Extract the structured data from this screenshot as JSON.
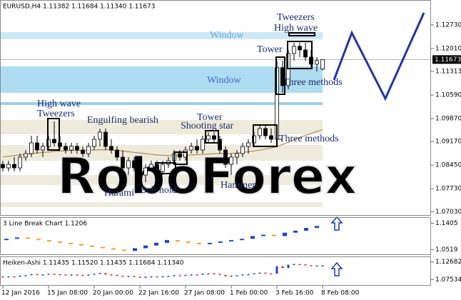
{
  "chart_data": [
    {
      "type": "candlestick",
      "title": "EURUSD,H4 1.11382 1.11684 1.11340 1.11673",
      "categories": [
        "12 Jan 2016",
        null,
        null,
        null,
        null,
        null,
        null,
        null,
        "15 Jan 08:00",
        null,
        null,
        null,
        null,
        null,
        null,
        null,
        "20 Jan 00:00",
        null,
        null,
        null,
        null,
        null,
        null,
        null,
        "22 Jan 16:00",
        null,
        null,
        null,
        null,
        null,
        null,
        null,
        "27 Jan 08:00",
        null,
        null,
        null,
        null,
        null,
        null,
        null,
        "1 Feb 00:00",
        null,
        null,
        null,
        null,
        null,
        null,
        null,
        "3 Feb 16:00",
        null,
        null,
        null,
        null,
        null,
        null,
        null,
        "8 Feb 08:00"
      ],
      "open": [
        1.08475,
        1.08366,
        1.08475,
        1.08366,
        1.08694,
        1.08803,
        1.0913,
        1.08912,
        1.09021,
        1.09239,
        1.0913,
        1.09021,
        1.08912,
        1.09021,
        1.08912,
        1.08803,
        1.09021,
        1.09239,
        1.09457,
        1.09021,
        1.08912,
        1.08694,
        1.08366,
        1.08585,
        1.08366,
        1.08148,
        1.08366,
        1.08475,
        1.08257,
        1.08475,
        1.08585,
        1.08803,
        1.08694,
        1.08912,
        1.09021,
        1.08912,
        1.09239,
        1.09348,
        1.09239,
        1.08912,
        1.08475,
        1.08694,
        1.08803,
        1.09021,
        1.0913,
        1.09348,
        1.09566,
        1.09348,
        1.09239,
        1.11421,
        1.10876,
        1.11858,
        1.12076,
        1.11967,
        1.11748,
        1.1153,
        1.11382
      ],
      "high": [
        1.08585,
        1.08585,
        1.08694,
        1.08803,
        1.08912,
        1.09348,
        1.09348,
        1.0913,
        1.09348,
        1.09785,
        1.09348,
        1.0913,
        1.0913,
        1.0913,
        1.09021,
        1.0913,
        1.09348,
        1.09566,
        1.09566,
        1.09239,
        1.09021,
        1.08912,
        1.08694,
        1.08694,
        1.08475,
        1.08475,
        1.08585,
        1.08585,
        1.08585,
        1.08694,
        1.08912,
        1.08912,
        1.09021,
        1.0913,
        1.09239,
        1.09348,
        1.09457,
        1.09457,
        1.09348,
        1.09021,
        1.08803,
        1.08912,
        1.0913,
        1.09239,
        1.09457,
        1.09676,
        1.09676,
        1.09566,
        1.11639,
        1.11639,
        1.11967,
        1.12185,
        1.12185,
        1.12185,
        1.11967,
        1.11748,
        1.11684
      ],
      "low": [
        1.08257,
        1.08257,
        1.08257,
        1.08257,
        1.08585,
        1.08694,
        1.08803,
        1.08694,
        1.08912,
        1.09021,
        1.08912,
        1.08803,
        1.08803,
        1.08803,
        1.08694,
        1.08694,
        1.08912,
        1.09021,
        1.08912,
        1.08803,
        1.08585,
        1.08257,
        1.08148,
        1.08257,
        1.08039,
        1.0793,
        1.08257,
        1.08148,
        1.08148,
        1.08366,
        1.08475,
        1.08585,
        1.08585,
        1.08803,
        1.08803,
        1.08803,
        1.0913,
        1.0913,
        1.08803,
        1.08366,
        1.08148,
        1.08475,
        1.08694,
        1.08803,
        1.09021,
        1.09239,
        1.09239,
        1.0913,
        1.0913,
        1.10657,
        1.10767,
        1.11639,
        1.11748,
        1.11639,
        1.11421,
        1.11312,
        1.1134
      ],
      "close": [
        1.08366,
        1.08475,
        1.08366,
        1.08694,
        1.08803,
        1.0913,
        1.08912,
        1.09021,
        1.09239,
        1.0913,
        1.09021,
        1.08912,
        1.09021,
        1.08912,
        1.08803,
        1.09021,
        1.09239,
        1.09457,
        1.09021,
        1.08912,
        1.08694,
        1.08366,
        1.08585,
        1.08366,
        1.08148,
        1.08366,
        1.08475,
        1.08257,
        1.08475,
        1.08585,
        1.08803,
        1.08694,
        1.08912,
        1.09021,
        1.08912,
        1.09239,
        1.09348,
        1.09239,
        1.08912,
        1.08475,
        1.08694,
        1.08803,
        1.09021,
        1.0913,
        1.09348,
        1.09566,
        1.09348,
        1.09239,
        1.11421,
        1.10876,
        1.11858,
        1.12076,
        1.11967,
        1.11748,
        1.1153,
        1.11639,
        1.11673
      ],
      "up_color": "#ffffff",
      "down_color": "#000000",
      "moving_average": {
        "color": "#b08a4a",
        "values": [
          1.087,
          1.0872,
          1.0874,
          1.0876,
          1.0878,
          1.088,
          1.0882,
          1.0884,
          1.0885,
          1.0887,
          1.0888,
          1.0889,
          1.089,
          1.089,
          1.089,
          1.0891,
          1.0891,
          1.0892,
          1.0892,
          1.0891,
          1.089,
          1.0888,
          1.0886,
          1.0884,
          1.0882,
          1.088,
          1.0878,
          1.0876,
          1.0875,
          1.0874,
          1.0874,
          1.0874,
          1.0875,
          1.0876,
          1.0877,
          1.0878,
          1.0879,
          1.088,
          1.088,
          1.088,
          1.0881,
          1.0882,
          1.0884,
          1.0886,
          1.0888,
          1.0891,
          1.0894,
          1.0897,
          1.0902,
          1.0908,
          1.0915,
          1.0922,
          1.0929,
          1.0936,
          1.0942,
          1.0948,
          1.0953
        ]
      },
      "ylim": [
        1.0695,
        1.1349
      ],
      "yticks": [
        {
          "value": 1.1273,
          "label": "1.12730"
        },
        {
          "value": 1.1201,
          "label": "1.12010"
        },
        1.11313,
        {
          "value": 1.1059,
          "label": "1.10590"
        },
        {
          "value": 1.0987,
          "label": "1.09870"
        },
        {
          "value": 1.0917,
          "label": "1.09170"
        },
        {
          "value": 1.0845,
          "label": "1.08450"
        },
        {
          "value": 1.0773,
          "label": "1.07730"
        },
        {
          "value": 1.0703,
          "label": "1.07030"
        }
      ],
      "last_price": 1.11673,
      "zones": [
        {
          "label": "Window",
          "low": 1.12294,
          "high": 1.12512,
          "color": "#cfe8f6"
        },
        {
          "label": "Window",
          "low": 1.10657,
          "high": 1.11465,
          "color": "#aedcf1"
        },
        {
          "low": 1.10287,
          "high": 1.10374,
          "color": "#9ccfec"
        },
        {
          "low": 1.09392,
          "high": 1.09828,
          "color": "#efebdc"
        },
        {
          "low": 1.08585,
          "high": 1.09064,
          "color": "#efebdc"
        },
        {
          "low": 1.07843,
          "high": 1.08148,
          "color": "#efebdc"
        },
        {
          "low": 1.07166,
          "high": 1.07319,
          "color": "#efebdc"
        }
      ],
      "annotations": [
        "Tweezers",
        "High wave",
        "Tower",
        "Three methods",
        "High wave",
        "Tweezers",
        "Engulfing bearish",
        "Tower",
        "Shooting star",
        "Three methods",
        "Harami",
        "Belt hold",
        "Hammer"
      ],
      "watermark": "RoboForex"
    },
    {
      "type": "line_break",
      "title": "3 Line Break Chart 1.1206",
      "open": [
        1.0837,
        1.0882,
        1.0928,
        1.0882,
        1.0837,
        1.0792,
        1.0746,
        1.0701,
        1.0655,
        1.061,
        1.0564,
        1.0519,
        1.0474,
        1.0564,
        1.0655,
        1.0746,
        1.0837,
        1.0792,
        1.0746,
        1.0701,
        1.0746,
        1.0792,
        1.0837,
        1.0882,
        1.0973,
        1.1019,
        1.0973,
        1.1087,
        1.1155,
        1.1246
      ],
      "close": [
        1.0882,
        1.0928,
        1.0882,
        1.0837,
        1.0792,
        1.0746,
        1.0701,
        1.0655,
        1.061,
        1.0564,
        1.0519,
        1.0474,
        1.0564,
        1.0655,
        1.0746,
        1.0837,
        1.0792,
        1.0746,
        1.0701,
        1.0746,
        1.0792,
        1.0837,
        1.0882,
        1.0973,
        1.1019,
        1.0973,
        1.1087,
        1.1155,
        1.1246,
        1.1314
      ],
      "up_color": "#1f3fd0",
      "down_color": "#f0a020",
      "ylim": [
        1.036,
        1.1587
      ],
      "yticks": [
        1.1405,
        1.0519
      ]
    },
    {
      "type": "heiken_ashi",
      "title": "Heiken-Ashi 1.11435 1.11520 1.11435 1.11684 1.11340",
      "open": [
        1.08475,
        1.08366,
        1.08475,
        1.08366,
        1.08694,
        1.08803,
        1.0913,
        1.08912,
        1.09021,
        1.09239,
        1.0913,
        1.09021,
        1.08912,
        1.09021,
        1.08912,
        1.08803,
        1.09021,
        1.09239,
        1.09457,
        1.09021,
        1.08912,
        1.08694,
        1.08366,
        1.08585,
        1.08366,
        1.08148,
        1.08366,
        1.08475,
        1.08257,
        1.08475,
        1.08585,
        1.08803,
        1.08694,
        1.08912,
        1.09021,
        1.08912,
        1.09239,
        1.09348,
        1.09239,
        1.08912,
        1.08475,
        1.08694,
        1.08803,
        1.09021,
        1.0913,
        1.09348,
        1.09566,
        1.09348,
        1.09239,
        1.11421,
        1.10876,
        1.11858,
        1.12076,
        1.11967,
        1.11748,
        1.1153,
        1.11639
      ],
      "close": [
        1.08366,
        1.08475,
        1.08366,
        1.08694,
        1.08803,
        1.0913,
        1.08912,
        1.09021,
        1.09239,
        1.0913,
        1.09021,
        1.08912,
        1.09021,
        1.08912,
        1.08803,
        1.09021,
        1.09239,
        1.09457,
        1.09021,
        1.08912,
        1.08694,
        1.08366,
        1.08585,
        1.08366,
        1.08148,
        1.08366,
        1.08475,
        1.08257,
        1.08475,
        1.08585,
        1.08803,
        1.08694,
        1.08912,
        1.09021,
        1.08912,
        1.09239,
        1.09348,
        1.09239,
        1.08912,
        1.08475,
        1.08694,
        1.08803,
        1.09021,
        1.0913,
        1.09348,
        1.09566,
        1.09348,
        1.09239,
        1.11421,
        1.10876,
        1.11858,
        1.12076,
        1.11967,
        1.11748,
        1.1153,
        1.11639,
        1.11673
      ],
      "up_color": "#1f3fd0",
      "down_color": "#e02020",
      "ylim": [
        1.0595,
        1.14068
      ],
      "yticks": [
        1.12682,
        1.07534
      ]
    }
  ]
}
